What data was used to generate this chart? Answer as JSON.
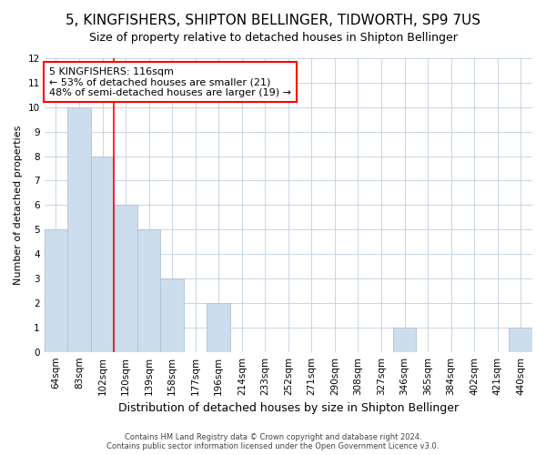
{
  "title": "5, KINGFISHERS, SHIPTON BELLINGER, TIDWORTH, SP9 7US",
  "subtitle": "Size of property relative to detached houses in Shipton Bellinger",
  "xlabel": "Distribution of detached houses by size in Shipton Bellinger",
  "ylabel": "Number of detached properties",
  "footer_line1": "Contains HM Land Registry data © Crown copyright and database right 2024.",
  "footer_line2": "Contains public sector information licensed under the Open Government Licence v3.0.",
  "categories": [
    "64sqm",
    "83sqm",
    "102sqm",
    "120sqm",
    "139sqm",
    "158sqm",
    "177sqm",
    "196sqm",
    "214sqm",
    "233sqm",
    "252sqm",
    "271sqm",
    "290sqm",
    "308sqm",
    "327sqm",
    "346sqm",
    "365sqm",
    "384sqm",
    "402sqm",
    "421sqm",
    "440sqm"
  ],
  "values": [
    5,
    10,
    8,
    6,
    5,
    3,
    0,
    2,
    0,
    0,
    0,
    0,
    0,
    0,
    0,
    1,
    0,
    0,
    0,
    0,
    1
  ],
  "bar_color": "#ccdded",
  "bar_edgecolor": "#a8c4d8",
  "vline_x_index": 2,
  "vline_color": "red",
  "ylim": [
    0,
    12
  ],
  "yticks": [
    0,
    1,
    2,
    3,
    4,
    5,
    6,
    7,
    8,
    9,
    10,
    11,
    12
  ],
  "annotation_text": "5 KINGFISHERS: 116sqm\n← 53% of detached houses are smaller (21)\n48% of semi-detached houses are larger (19) →",
  "annotation_box_facecolor": "white",
  "annotation_box_edgecolor": "red",
  "grid_color": "#c0cfe0",
  "bg_color": "#ffffff",
  "title_fontsize": 11,
  "subtitle_fontsize": 9,
  "ylabel_fontsize": 8,
  "xlabel_fontsize": 9,
  "tick_fontsize": 7.5,
  "annotation_fontsize": 8,
  "footer_fontsize": 6
}
